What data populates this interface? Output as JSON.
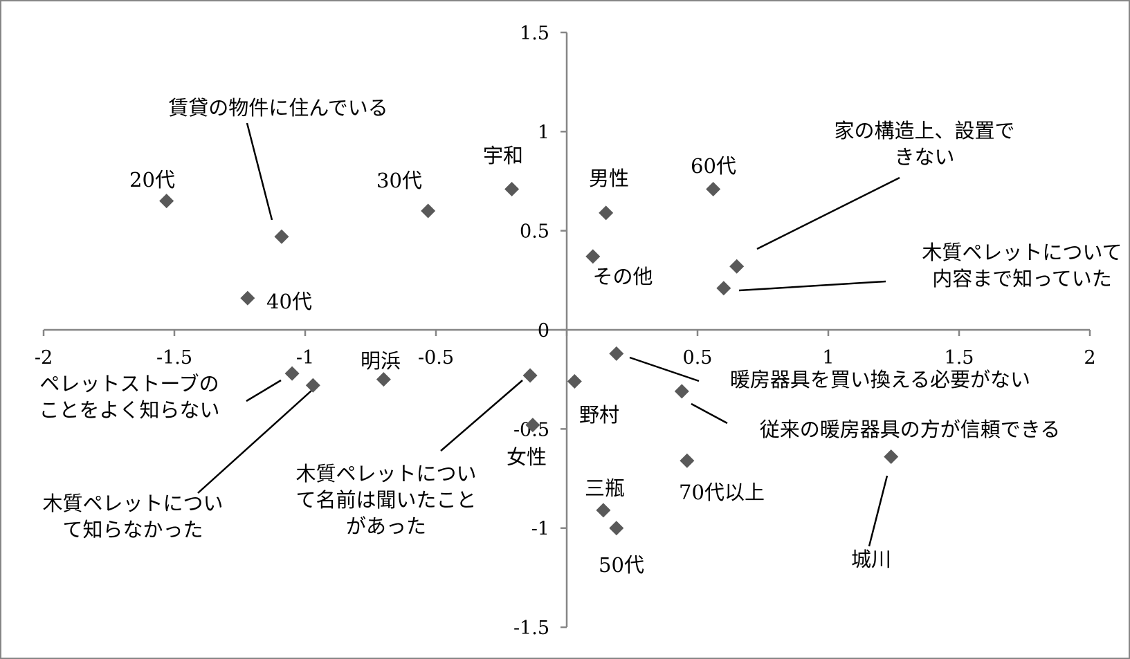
{
  "chart_data": {
    "type": "scatter",
    "title": "",
    "xlabel": "",
    "ylabel": "",
    "xlim": [
      -2,
      2
    ],
    "ylim": [
      -1.5,
      1.5
    ],
    "grid": false,
    "legend": "none",
    "marker_color": "#595959",
    "axis_color": "#868686",
    "x_ticks": [
      {
        "value": -2,
        "label": "-2"
      },
      {
        "value": -1.5,
        "label": "-1.5"
      },
      {
        "value": -1,
        "label": "-1"
      },
      {
        "value": -0.5,
        "label": "-0.5"
      },
      {
        "value": 0,
        "label": "0"
      },
      {
        "value": 0.5,
        "label": "0.5"
      },
      {
        "value": 1,
        "label": "1"
      },
      {
        "value": 1.5,
        "label": "1.5"
      },
      {
        "value": 2,
        "label": "2"
      }
    ],
    "y_ticks": [
      {
        "value": 1.5,
        "label": "1.5"
      },
      {
        "value": 1,
        "label": "1"
      },
      {
        "value": 0.5,
        "label": "0.5"
      },
      {
        "value": 0,
        "label": "0"
      },
      {
        "value": -0.5,
        "label": "-0.5"
      },
      {
        "value": -1,
        "label": "-1"
      },
      {
        "value": -1.5,
        "label": "-1.5"
      }
    ],
    "points": [
      {
        "x": -1.53,
        "y": 0.65,
        "label": [
          "20代"
        ]
      },
      {
        "x": -1.09,
        "y": 0.47,
        "label": [
          "賃貸の物件に住んでいる"
        ]
      },
      {
        "x": -1.22,
        "y": 0.16,
        "label": [
          "40代"
        ]
      },
      {
        "x": -0.53,
        "y": 0.6,
        "label": [
          "30代"
        ]
      },
      {
        "x": -0.21,
        "y": 0.71,
        "label": [
          "宇和"
        ]
      },
      {
        "x": 0.15,
        "y": 0.59,
        "label": [
          "男性"
        ]
      },
      {
        "x": 0.1,
        "y": 0.37,
        "label": [
          "その他"
        ]
      },
      {
        "x": 0.56,
        "y": 0.71,
        "label": [
          "60代"
        ]
      },
      {
        "x": 0.65,
        "y": 0.32,
        "label": [
          "家の構造上、設置で",
          "きない"
        ]
      },
      {
        "x": 0.6,
        "y": 0.21,
        "label": [
          "木質ペレットについて",
          "内容まで知っていた"
        ]
      },
      {
        "x": -1.05,
        "y": -0.22,
        "label": [
          "ペレットストーブの",
          "ことをよく知らない"
        ]
      },
      {
        "x": -0.97,
        "y": -0.28,
        "label": [
          "木質ペレットについ",
          "て知らなかった"
        ]
      },
      {
        "x": -0.7,
        "y": -0.25,
        "label": [
          "明浜"
        ]
      },
      {
        "x": -0.14,
        "y": -0.23,
        "label": [
          "木質ペレットについ",
          "て名前は聞いたこと",
          "があった"
        ]
      },
      {
        "x": -0.13,
        "y": -0.48,
        "label": [
          "女性"
        ]
      },
      {
        "x": 0.03,
        "y": -0.26,
        "label": [
          "野村"
        ]
      },
      {
        "x": 0.19,
        "y": -0.12,
        "label": [
          "暖房器具を買い換える必要がない"
        ]
      },
      {
        "x": 0.44,
        "y": -0.31,
        "label": [
          "従来の暖房器具の方が信頼できる"
        ]
      },
      {
        "x": 0.46,
        "y": -0.66,
        "label": [
          "70代以上"
        ]
      },
      {
        "x": 1.24,
        "y": -0.64,
        "label": [
          "城川"
        ]
      },
      {
        "x": 0.14,
        "y": -0.91,
        "label": [
          "三瓶"
        ]
      },
      {
        "x": 0.19,
        "y": -1.0,
        "label": [
          "50代"
        ]
      }
    ]
  }
}
